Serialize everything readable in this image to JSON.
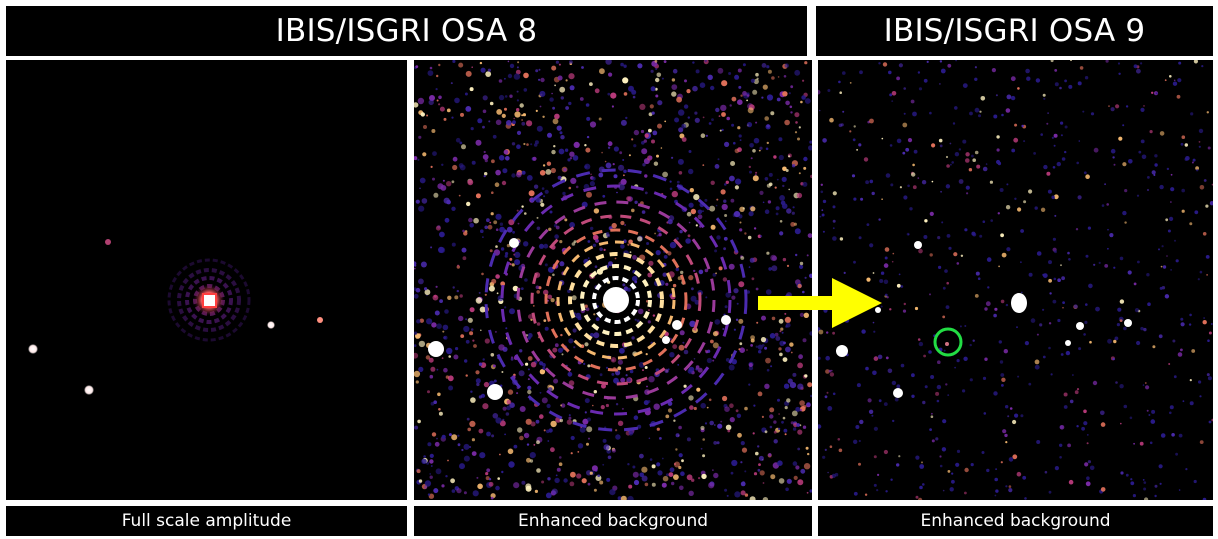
{
  "headers": {
    "osa8": "IBIS/ISGRI OSA 8",
    "osa9": "IBIS/ISGRI OSA 9"
  },
  "captions": {
    "panel1": "Full scale amplitude",
    "panel2": "Enhanced background",
    "panel3": "Enhanced background"
  },
  "colors": {
    "background": "#000000",
    "frame": "#ffffff",
    "arrow": "#ffff00",
    "marker_circle": "#22dd44",
    "noise_palette": [
      "#2a1b8c",
      "#4b2bb0",
      "#7a2aa6",
      "#b83a7a",
      "#e0705a",
      "#f4b870",
      "#fff2c0"
    ]
  },
  "icons": {
    "arrow": "arrow-right-icon",
    "marker": "circle-marker-icon"
  }
}
